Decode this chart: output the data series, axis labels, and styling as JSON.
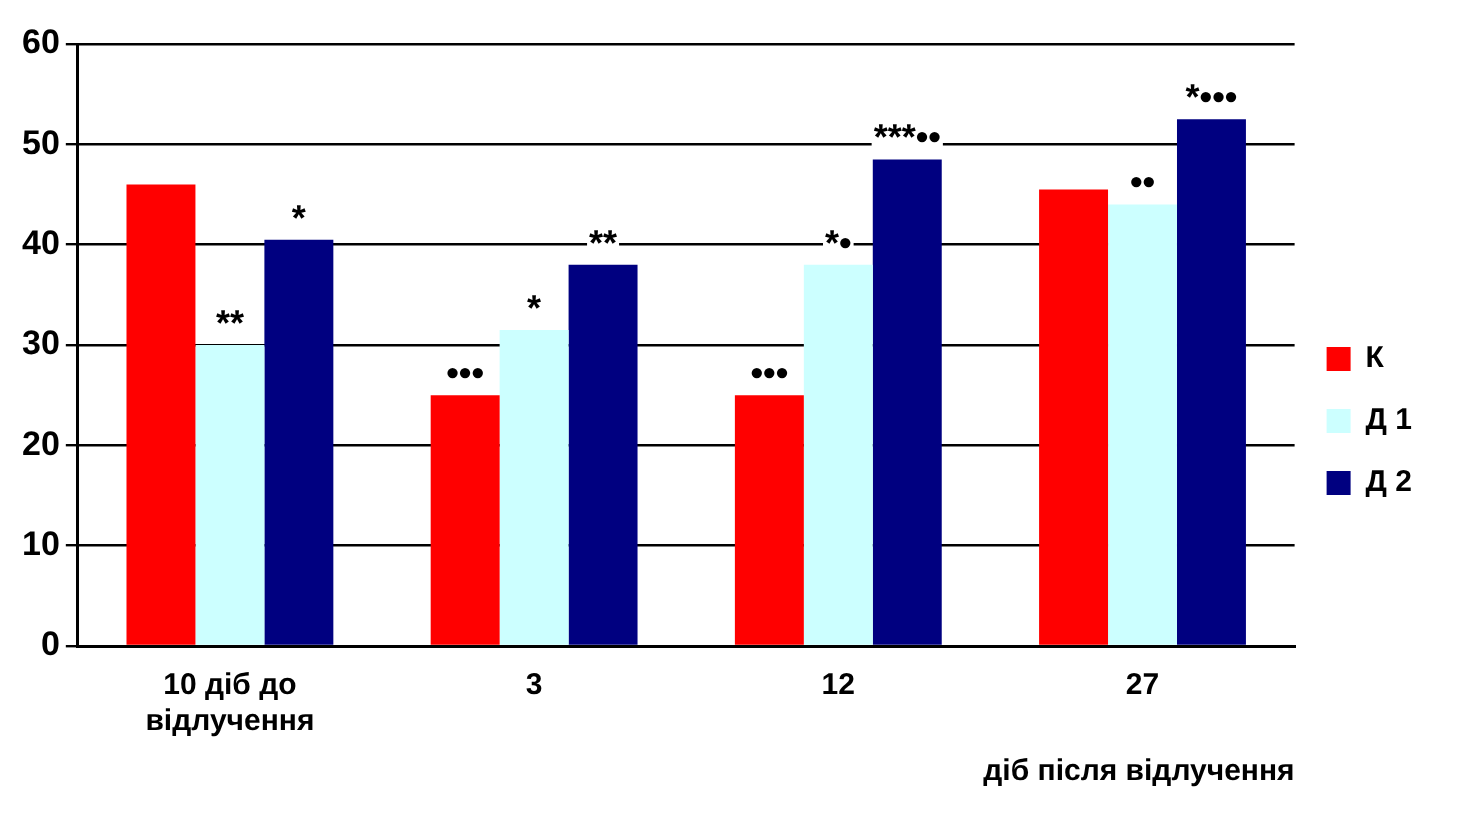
{
  "chart_data": {
    "type": "bar",
    "xlabel": "діб після відлучення",
    "categories": [
      "10 діб до відлучення",
      "3",
      "12",
      "27"
    ],
    "series": [
      {
        "name": "К",
        "color": "#ff0000",
        "values": [
          46,
          25,
          25,
          45.5
        ],
        "value_labels": [
          null,
          "•••",
          "•••",
          null
        ]
      },
      {
        "name": "Д 1",
        "color": "#ccffff",
        "values": [
          30,
          31.5,
          38,
          44
        ],
        "value_labels": [
          "**",
          "*",
          "*•",
          "••"
        ]
      },
      {
        "name": "Д 2",
        "color": "#000080",
        "values": [
          40.5,
          38,
          48.5,
          52.5
        ],
        "value_labels": [
          "*",
          "**",
          "***••",
          "*•••"
        ]
      }
    ],
    "ylim": [
      0,
      60
    ],
    "yticks": [
      0,
      10,
      20,
      30,
      40,
      50,
      60
    ],
    "grid": "y",
    "legend": "right"
  }
}
